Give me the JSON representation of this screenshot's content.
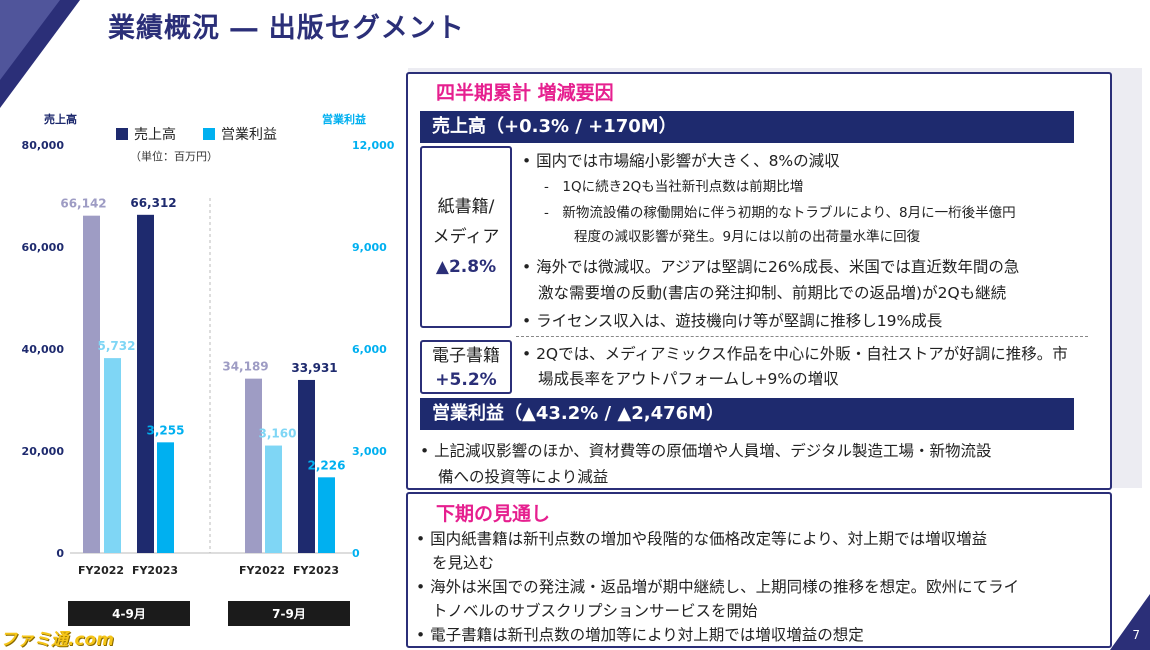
{
  "page": {
    "title": "業績概況 ― 出版セグメント",
    "page_number": "7",
    "watermark": "ファミ通.com"
  },
  "chart_data": {
    "type": "bar",
    "left_axis_title": "売上高",
    "right_axis_title": "営業利益",
    "left_ticks": [
      "80,000",
      "60,000",
      "40,000",
      "20,000",
      "0"
    ],
    "right_ticks": [
      "12,000",
      "9,000",
      "6,000",
      "3,000",
      "0"
    ],
    "left_ylim": [
      0,
      80000
    ],
    "right_ylim": [
      0,
      12000
    ],
    "legend": [
      "売上高",
      "営業利益"
    ],
    "unit": "（単位：百万円）",
    "groups": [
      {
        "label": "4-9月",
        "categories": [
          "FY2022",
          "FY2023"
        ],
        "sales": [
          66142,
          66312
        ],
        "sales_labels": [
          "66,142",
          "66,312"
        ],
        "profit": [
          5732,
          3255
        ],
        "profit_labels": [
          "5,732",
          "3,255"
        ]
      },
      {
        "label": "7-9月",
        "categories": [
          "FY2022",
          "FY2023"
        ],
        "sales": [
          34189,
          33931
        ],
        "sales_labels": [
          "34,189",
          "33,931"
        ],
        "profit": [
          3160,
          2226
        ],
        "profit_labels": [
          "3,160",
          "2,226"
        ]
      }
    ],
    "colors": {
      "sales_prev": "#9e9cc4",
      "sales_curr": "#1e2a6e",
      "profit_prev": "#7fd6f5",
      "profit_curr": "#00b0f0",
      "axis_title_left": "#1e2a6e",
      "axis_title_right": "#00b0f0"
    }
  },
  "panel": {
    "heading": "四半期累計 増減要因",
    "sales_bar": "売上高（+0.3% / +170M）",
    "paper": {
      "label1": "紙書籍/",
      "label2": "メディア",
      "value": "▲2.8%",
      "bullets": [
        "• 国内では市場縮小影響が大きく、8%の減収",
        "-　1Qに続き2Qも当社新刊点数は前期比増",
        "-　新物流設備の稼働開始に伴う初期的なトラブルにより、8月に一桁後半億円",
        "程度の減収影響が発生。9月には以前の出荷量水準に回復",
        "• 海外では微減収。アジアは堅調に26%成長、米国では直近数年間の急",
        "激な需要増の反動(書店の発注抑制、前期比での返品増)が2Qも継続",
        "• ライセンス収入は、遊技機向け等が堅調に推移し19%成長"
      ]
    },
    "digital": {
      "label": "電子書籍",
      "value": "+5.2%",
      "lines": [
        "• 2Qでは、メディアミックス作品を中心に外販・自社ストアが好調に推移。市",
        "場成長率をアウトパフォームし+9%の増収"
      ]
    },
    "profit_bar": "営業利益（▲43.2% / ▲2,476M）",
    "profit_lines": [
      "• 上記減収影響のほか、資材費等の原価増や人員増、デジタル製造工場・新物流設",
      "備への投資等により減益"
    ]
  },
  "outlook": {
    "heading": "下期の見通し",
    "lines": [
      "• 国内紙書籍は新刊点数の増加や段階的な価格改定等により、対上期では増収増益",
      "を見込む",
      "• 海外は米国での発注減・返品増が期中継続し、上期同様の推移を想定。欧州にてライ",
      "トノベルのサブスクリプションサービスを開始",
      "• 電子書籍は新刊点数の増加等により対上期では増収増益の想定"
    ]
  }
}
